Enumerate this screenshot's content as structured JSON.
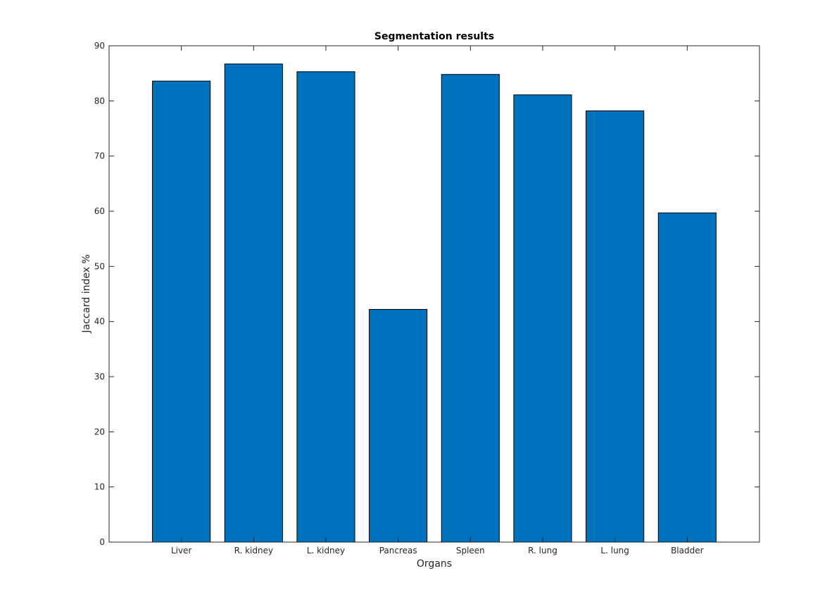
{
  "chart_data": {
    "type": "bar",
    "title": "Segmentation results",
    "xlabel": "Organs",
    "ylabel": "Jaccard index %",
    "categories": [
      "Liver",
      "R. kidney",
      "L. kidney",
      "Pancreas",
      "Spleen",
      "R. lung",
      "L. lung",
      "Bladder"
    ],
    "values": [
      83.6,
      86.7,
      85.3,
      42.2,
      84.8,
      81.1,
      78.2,
      59.7
    ],
    "ylim": [
      0,
      90
    ],
    "yticks": [
      0,
      10,
      20,
      30,
      40,
      50,
      60,
      70,
      80,
      90
    ],
    "grid": false,
    "legend": "none",
    "colors": {
      "bar_fill": "#0072bd",
      "bar_edge": "#000000",
      "axis": "#262626",
      "background": "#ffffff"
    }
  }
}
